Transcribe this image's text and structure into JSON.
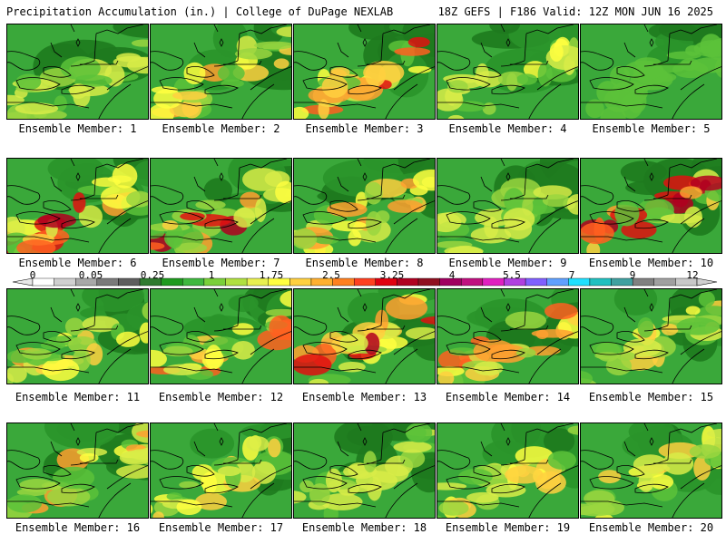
{
  "header": {
    "left_title": "Precipitation Accumulation (in.) | College of DuPage NEXLAB",
    "right_title": "18Z GEFS | F186 Valid: 12Z MON JUN 16 2025"
  },
  "colors": {
    "background": "#ffffff",
    "border": "#000000",
    "map_lines": "#000000"
  },
  "colorbar": {
    "tick_labels": [
      "0",
      "0.05",
      "0.25",
      "1",
      "1.75",
      "2.5",
      "3.25",
      "4",
      "5.5",
      "7",
      "9",
      "12"
    ],
    "bins": [
      "#ffffff",
      "#d0d0d0",
      "#a8a8a8",
      "#7a7a7a",
      "#5e5e5e",
      "#2f7a2f",
      "#1f9a1f",
      "#3fb83f",
      "#7ad03a",
      "#b0e040",
      "#e8f050",
      "#ffff40",
      "#ffd040",
      "#ffb030",
      "#ff8020",
      "#ff4020",
      "#e00010",
      "#b00020",
      "#901020",
      "#a00060",
      "#c01080",
      "#e020c0",
      "#b040e0",
      "#8060ff",
      "#60a0ff",
      "#20e0ff",
      "#20c0c0",
      "#40a0a0",
      "#808080",
      "#a0a0a0",
      "#c8c8c8"
    ]
  },
  "panels": [
    {
      "label": "Ensemble Member: 1"
    },
    {
      "label": "Ensemble Member: 2"
    },
    {
      "label": "Ensemble Member: 3"
    },
    {
      "label": "Ensemble Member: 4"
    },
    {
      "label": "Ensemble Member: 5"
    },
    {
      "label": "Ensemble Member: 6"
    },
    {
      "label": "Ensemble Member: 7"
    },
    {
      "label": "Ensemble Member: 8"
    },
    {
      "label": "Ensemble Member: 9"
    },
    {
      "label": "Ensemble Member: 10"
    },
    {
      "label": "Ensemble Member: 11"
    },
    {
      "label": "Ensemble Member: 12"
    },
    {
      "label": "Ensemble Member: 13"
    },
    {
      "label": "Ensemble Member: 14"
    },
    {
      "label": "Ensemble Member: 15"
    },
    {
      "label": "Ensemble Member: 16"
    },
    {
      "label": "Ensemble Member: 17"
    },
    {
      "label": "Ensemble Member: 18"
    },
    {
      "label": "Ensemble Member: 19"
    },
    {
      "label": "Ensemble Member: 20"
    }
  ]
}
